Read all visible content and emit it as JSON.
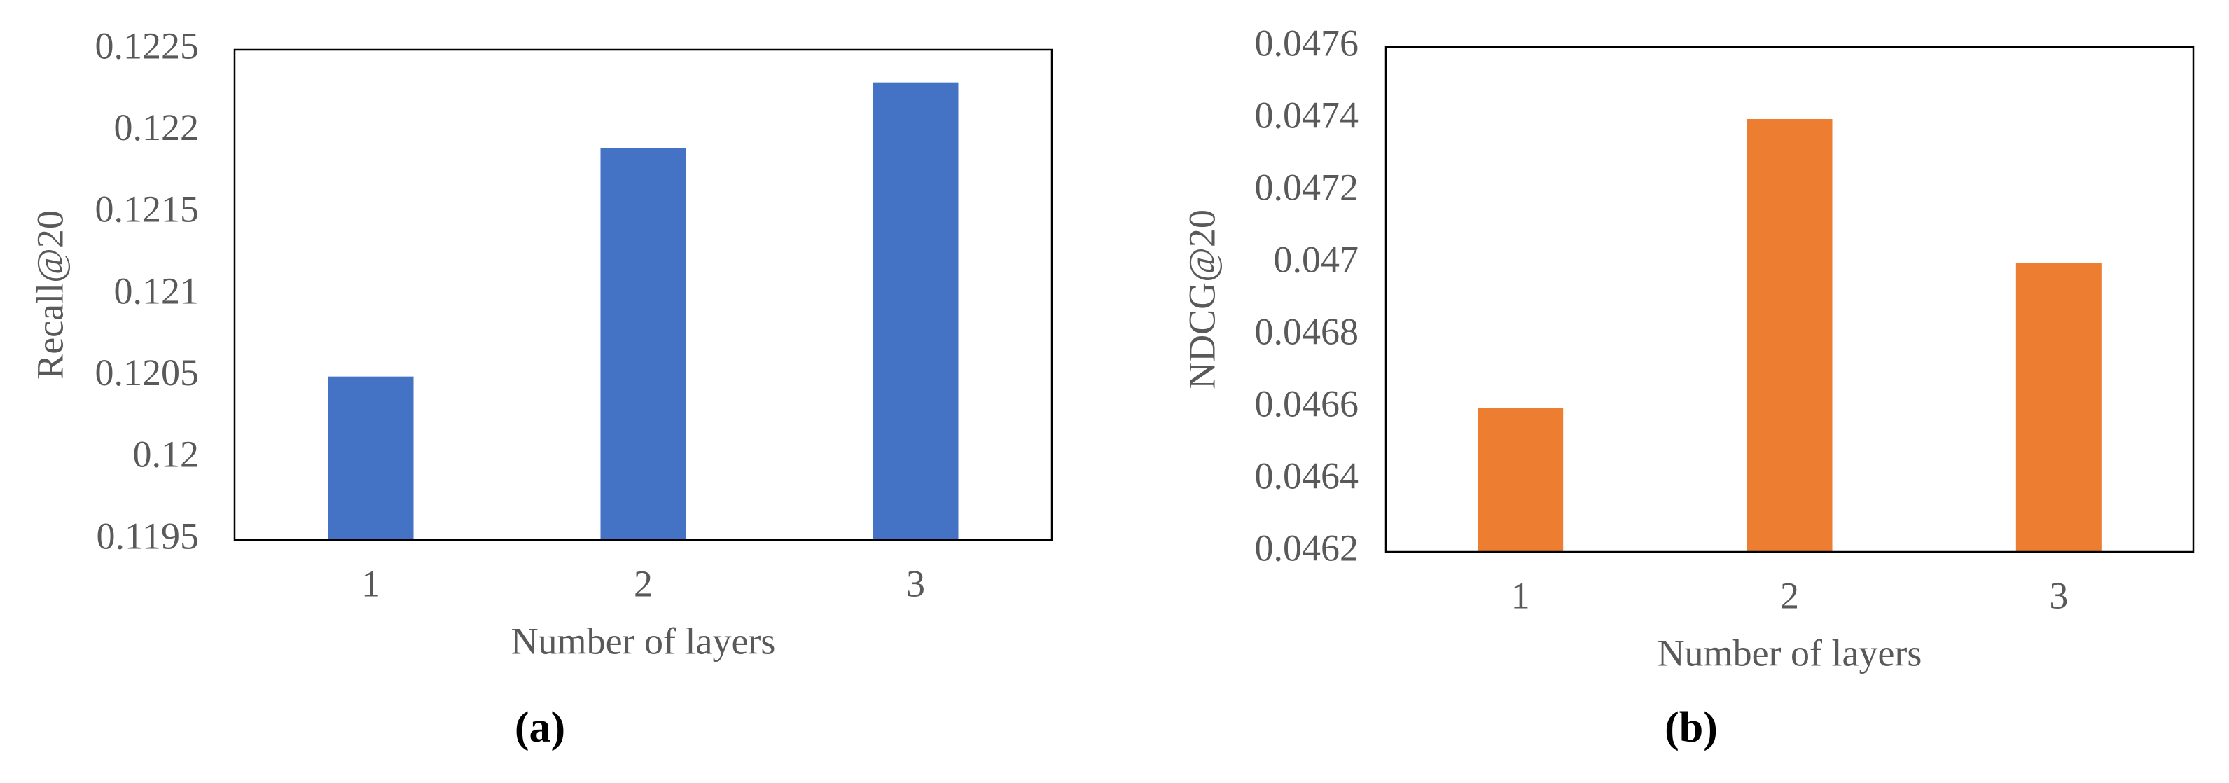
{
  "chart_data": [
    {
      "type": "bar",
      "label": "(a)",
      "x_label": "Number of layers",
      "y_label": "Recall@20",
      "categories": [
        "1",
        "2",
        "3"
      ],
      "values": [
        0.1205,
        0.1219,
        0.1223
      ],
      "color": "#4472c4",
      "ylim": [
        0.1195,
        0.1225
      ],
      "yticks": [
        0.1195,
        0.12,
        0.1205,
        0.121,
        0.1215,
        0.122,
        0.1225
      ],
      "grid": false
    },
    {
      "type": "bar",
      "label": "(b)",
      "x_label": "Number of layers",
      "y_label": "NDCG@20",
      "categories": [
        "1",
        "2",
        "3"
      ],
      "values": [
        0.0466,
        0.0474,
        0.047
      ],
      "color": "#ed7d31",
      "ylim": [
        0.0462,
        0.0476
      ],
      "yticks": [
        0.0462,
        0.0464,
        0.0466,
        0.0468,
        0.047,
        0.0472,
        0.0474,
        0.0476
      ],
      "grid": false
    }
  ]
}
